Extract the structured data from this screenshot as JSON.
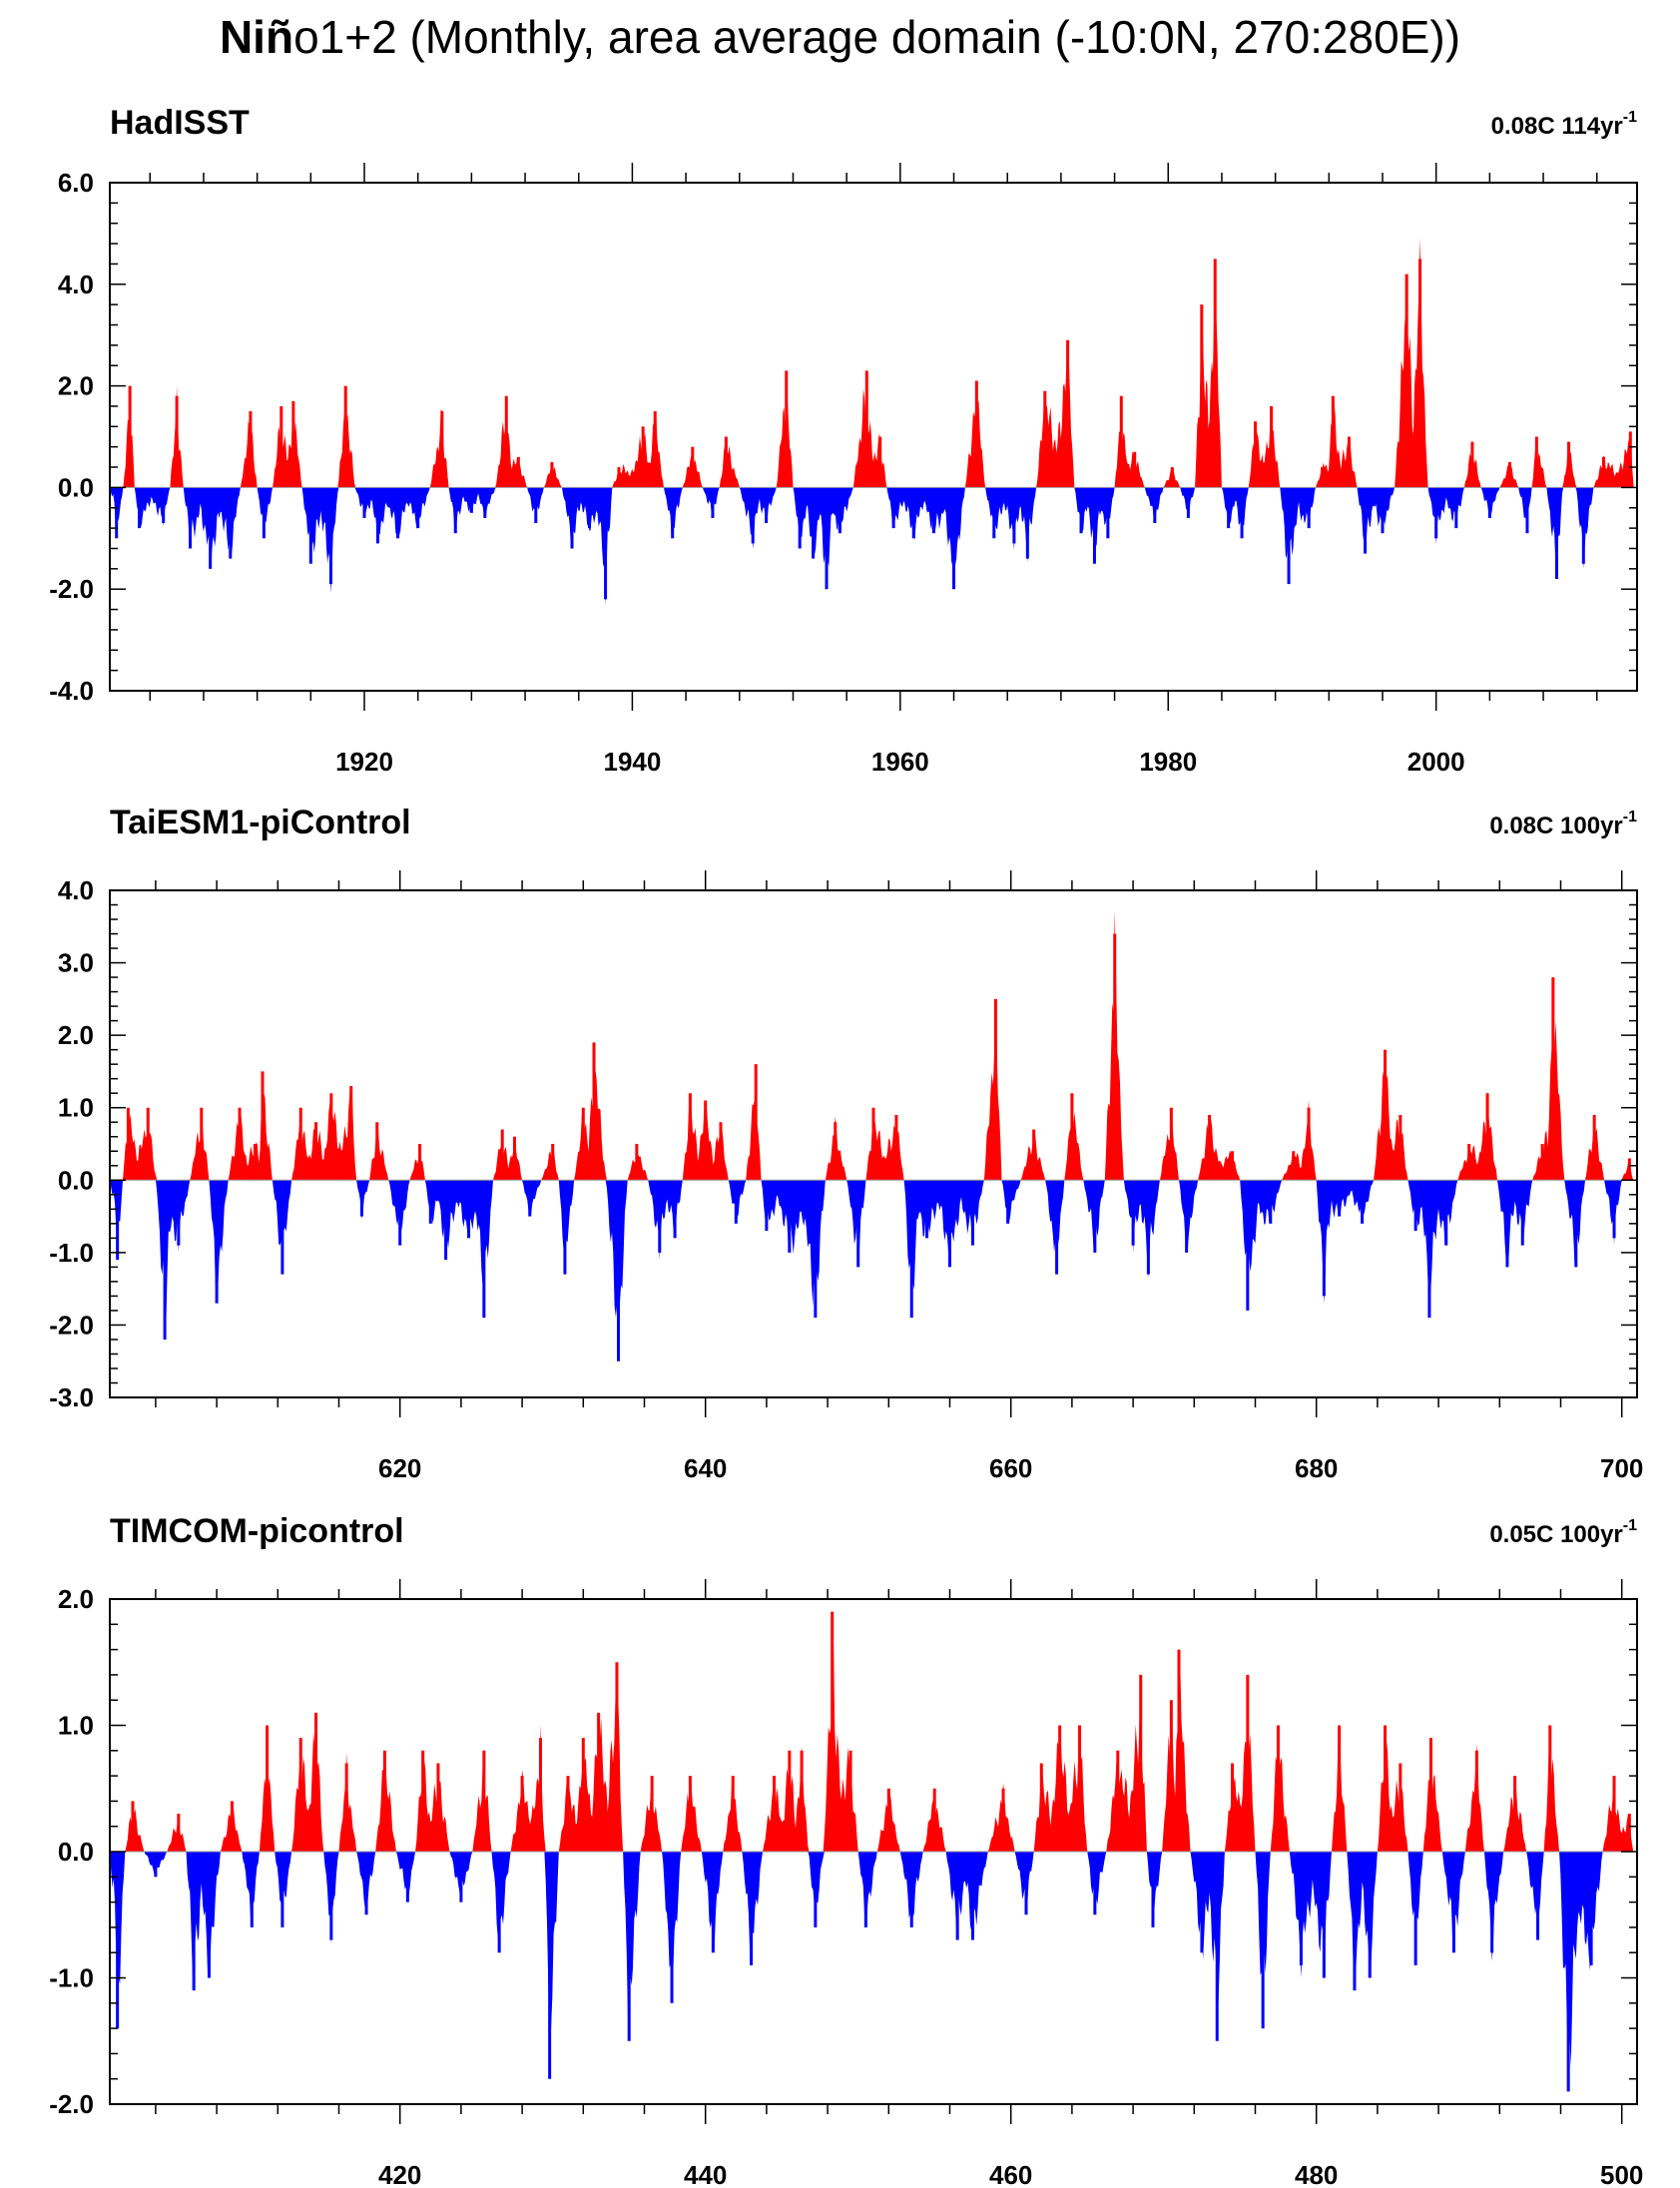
{
  "figure": {
    "title_bold": "Niñ",
    "title_rest": "o1+2 (Monthly, area average domain (-10:0N, 270:280E))",
    "colors": {
      "positive": "#ff0000",
      "negative": "#0000ff",
      "axis": "#000000"
    }
  },
  "chart_data": [
    {
      "type": "bar",
      "title": "HadISST",
      "trend_label": "0.08C 114yr",
      "trend_sup": "-1",
      "xlim": [
        1901,
        2015
      ],
      "ylim": [
        -4.0,
        6.0
      ],
      "yticks": [
        6.0,
        4.0,
        2.0,
        0.0,
        -2.0,
        -4.0
      ],
      "ytick_labels": [
        "6.0",
        "4.0",
        "2.0",
        "0.0",
        "-2.0",
        "-4.0"
      ],
      "xticks": [
        1920,
        1940,
        1960,
        1980,
        2000
      ],
      "xtick_labels": [
        "1920",
        "1940",
        "1960",
        "1980",
        "2000"
      ],
      "series": [
        {
          "x": [
            1901.5,
            1902.5,
            1903.2,
            1905,
            1906,
            1907,
            1908.5,
            1910,
            1911.5,
            1912.5,
            1913.8,
            1914.7,
            1916,
            1917.5,
            1918.6,
            1920,
            1921,
            1922.5,
            1924,
            1925.8,
            1926.8,
            1928,
            1929,
            1930.6,
            1931.5,
            1932.8,
            1934,
            1935.5,
            1936.8,
            1938,
            1939,
            1940.8,
            1941.7,
            1943,
            1944.5,
            1946,
            1947,
            1949,
            1950,
            1951.5,
            1952.5,
            1953.5,
            1954.5,
            1955.5,
            1957.5,
            1958.5,
            1959.5,
            1961,
            1962.5,
            1964,
            1965.7,
            1967,
            1968.5,
            1969.5,
            1970.8,
            1972.5,
            1973.5,
            1974.5,
            1975.5,
            1976.5,
            1977.5,
            1979,
            1980.3,
            1981.5,
            1982.5,
            1983.5,
            1984.5,
            1985.5,
            1986.5,
            1987.7,
            1989,
            1990.5,
            1991.5,
            1992.3,
            1993.5,
            1994.7,
            1996,
            1997.8,
            1998.8,
            2000,
            2001.5,
            2002.7,
            2004,
            2005.5,
            2006.8,
            2007.5,
            2009,
            2009.9,
            2011,
            2012.5,
            2014.5
          ],
          "y": [
            -1.0,
            2.0,
            -0.8,
            -0.7,
            1.8,
            -1.2,
            -1.6,
            -1.4,
            1.5,
            -1.0,
            1.6,
            1.7,
            -1.5,
            -1.9,
            2.0,
            -0.6,
            -1.1,
            -1.0,
            -0.8,
            1.5,
            -0.9,
            -0.5,
            -0.6,
            1.8,
            0.6,
            -0.7,
            0.5,
            -1.2,
            -0.8,
            -2.2,
            0.4,
            1.2,
            1.5,
            -1.0,
            0.8,
            -0.6,
            1.0,
            -1.1,
            -0.7,
            2.3,
            -1.2,
            -1.4,
            -2.0,
            -0.9,
            2.3,
            1.0,
            -0.8,
            -1.0,
            -0.9,
            -2.0,
            2.1,
            -1.0,
            -1.1,
            -1.4,
            1.9,
            2.9,
            -0.9,
            -1.5,
            -1.0,
            1.8,
            0.7,
            -0.7,
            0.4,
            -0.6,
            3.6,
            4.5,
            -0.8,
            -1.0,
            1.3,
            1.6,
            -1.9,
            -0.8,
            0.4,
            1.8,
            1.0,
            -1.3,
            -0.9,
            4.2,
            4.5,
            -1.0,
            -0.8,
            0.9,
            -0.6,
            0.5,
            -0.9,
            1.0,
            -1.8,
            0.9,
            -1.5,
            0.6,
            1.1
          ]
        }
      ]
    },
    {
      "type": "bar",
      "title": "TaiESM1-piControl",
      "trend_label": "0.08C 100yr",
      "trend_sup": "-1",
      "xlim": [
        601,
        701
      ],
      "ylim": [
        -3.0,
        4.0
      ],
      "yticks": [
        4.0,
        3.0,
        2.0,
        1.0,
        0.0,
        -1.0,
        -2.0,
        -3.0
      ],
      "ytick_labels": [
        "4.0",
        "3.0",
        "2.0",
        "1.0",
        "0.0",
        "-1.0",
        "-2.0",
        "-3.0"
      ],
      "xticks": [
        620,
        640,
        660,
        680,
        700
      ],
      "xtick_labels": [
        "620",
        "640",
        "660",
        "680",
        "700"
      ],
      "series": [
        {
          "x": [
            601.5,
            602.2,
            603.5,
            604.6,
            605.5,
            607,
            608,
            609.5,
            610.5,
            611,
            612.3,
            613.5,
            614.5,
            615.5,
            616.8,
            617.5,
            618.5,
            620,
            621.3,
            622,
            623,
            624.5,
            625.5,
            626.7,
            627.5,
            628.5,
            630,
            630.8,
            632,
            632.7,
            634.3,
            635.5,
            637,
            638,
            639,
            640,
            641,
            642,
            643.3,
            644,
            645.5,
            647.2,
            648.5,
            650,
            651,
            652.5,
            653.5,
            654.5,
            656,
            657.5,
            659,
            659.8,
            661.5,
            663,
            664,
            665.5,
            666.8,
            668,
            669,
            670.5,
            671.5,
            673,
            674.5,
            675.5,
            677,
            678.5,
            679.5,
            680.5,
            681.5,
            683,
            684.5,
            685.5,
            686.5,
            687.4,
            688.5,
            690,
            691.2,
            692.5,
            693.5,
            694.8,
            695.5,
            697,
            698.2,
            699.5,
            700.5
          ],
          "y": [
            -1.1,
            1.0,
            1.0,
            -2.2,
            -0.9,
            1.0,
            -1.7,
            1.0,
            0.5,
            1.5,
            -1.3,
            1.0,
            0.8,
            1.2,
            1.3,
            -0.5,
            0.8,
            -0.9,
            0.5,
            -0.6,
            -1.1,
            -0.8,
            -1.9,
            0.7,
            0.6,
            -0.5,
            0.5,
            -1.3,
            1.0,
            1.9,
            -2.5,
            0.5,
            -1.0,
            -0.8,
            1.2,
            1.1,
            0.8,
            -0.6,
            1.6,
            -0.7,
            -1.0,
            -1.9,
            0.8,
            -1.2,
            1.0,
            0.9,
            -1.9,
            -0.8,
            -1.2,
            -0.9,
            2.5,
            -0.6,
            0.7,
            -1.3,
            1.2,
            -1.0,
            3.4,
            -0.9,
            -1.3,
            1.0,
            -1.0,
            0.9,
            0.4,
            -1.8,
            -0.6,
            0.4,
            1.0,
            -1.6,
            -0.5,
            -0.6,
            1.8,
            0.9,
            -0.7,
            -1.9,
            -0.9,
            0.5,
            1.2,
            -1.2,
            -0.9,
            0.5,
            2.8,
            -1.2,
            0.9,
            -0.8,
            0.3
          ]
        }
      ]
    },
    {
      "type": "bar",
      "title": "TIMCOM-picontrol",
      "trend_label": "0.05C 100yr",
      "trend_sup": "-1",
      "xlim": [
        401,
        501
      ],
      "ylim": [
        -2.0,
        2.0
      ],
      "yticks": [
        2.0,
        1.0,
        0.0,
        -1.0,
        -2.0
      ],
      "ytick_labels": [
        "2.0",
        "1.0",
        "0.0",
        "-1.0",
        "-2.0"
      ],
      "xticks": [
        420,
        440,
        460,
        480,
        500
      ],
      "xtick_labels": [
        "420",
        "440",
        "460",
        "480",
        "500"
      ],
      "series": [
        {
          "x": [
            401.5,
            402.5,
            404,
            405.5,
            406.5,
            407.5,
            409,
            410.3,
            411.3,
            412.3,
            413.5,
            414.5,
            415.5,
            416.5,
            417.8,
            419,
            420.5,
            421.5,
            422.5,
            424,
            425.5,
            426.5,
            428,
            429.2,
            429.8,
            431,
            432,
            433,
            434.2,
            435,
            436.5,
            437.8,
            439,
            440.5,
            441.8,
            443,
            444.5,
            445.5,
            446.3,
            447.2,
            448.3,
            449.5,
            450.5,
            452,
            453.5,
            455,
            456.5,
            457.5,
            459.5,
            461,
            462,
            463.2,
            464.5,
            465.5,
            467,
            468.5,
            469.3,
            470.5,
            471,
            472.5,
            473.5,
            474.5,
            475.5,
            476.5,
            477.5,
            479,
            480.5,
            481.5,
            482.5,
            483.5,
            484.5,
            485.5,
            486.5,
            487.5,
            489,
            490.5,
            491.5,
            493,
            494.5,
            495.3,
            496.5,
            498,
            499.5,
            500.5
          ],
          "y": [
            -1.4,
            0.4,
            -0.2,
            0.3,
            -1.1,
            -1.0,
            0.4,
            -0.6,
            1.0,
            -0.6,
            0.9,
            1.1,
            -0.7,
            0.7,
            -0.5,
            0.8,
            -0.4,
            0.8,
            0.7,
            -0.4,
            0.8,
            -0.8,
            0.6,
            0.9,
            -1.8,
            0.6,
            0.9,
            1.1,
            1.5,
            -1.5,
            0.6,
            -1.2,
            0.6,
            -0.8,
            0.6,
            -0.9,
            0.6,
            0.8,
            0.8,
            -0.6,
            1.9,
            0.8,
            -0.6,
            0.5,
            -0.6,
            0.5,
            -0.7,
            -0.7,
            0.5,
            -0.5,
            0.7,
            1.0,
            1.0,
            -0.5,
            0.8,
            1.4,
            -0.6,
            1.2,
            1.6,
            -0.8,
            -1.5,
            0.7,
            1.4,
            -1.4,
            1.0,
            -0.9,
            -1.0,
            1.0,
            -1.1,
            -1.0,
            1.0,
            0.7,
            -0.9,
            0.9,
            -0.8,
            0.8,
            -0.8,
            0.6,
            -0.7,
            1.0,
            -1.9,
            -0.9,
            0.6,
            0.3
          ]
        }
      ]
    }
  ]
}
